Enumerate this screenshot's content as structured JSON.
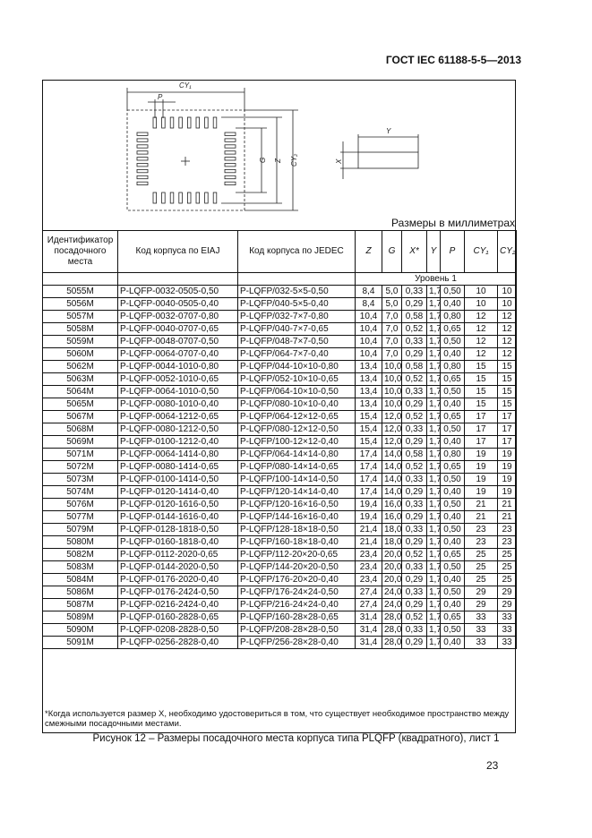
{
  "header": "ГОСТ IEC 61188-5-5—2013",
  "diagram": {
    "cy1": "CY₁",
    "p": "P",
    "g": "G",
    "z": "Z",
    "cy2": "CY₂",
    "y": "Y",
    "x": "X"
  },
  "units": "Размеры в миллиметрах",
  "columns": [
    "Идентификатор посадочного места",
    "Код корпуса по EIAJ",
    "Код корпуса по JEDEC",
    "Z",
    "G",
    "X*",
    "Y",
    "P",
    "CY₁",
    "CY₂"
  ],
  "level": "Уровень 1",
  "rows": [
    [
      "5055M",
      "P-LQFP-0032-0505-0,50",
      "P-LQFP/032-5×5-0,50",
      "8,4",
      "5,0",
      "0,33",
      "1,7",
      "0,50",
      "10",
      "10"
    ],
    [
      "5056M",
      "P-LQFP-0040-0505-0,40",
      "P-LQFP/040-5×5-0,40",
      "8,4",
      "5,0",
      "0,29",
      "1,7",
      "0,40",
      "10",
      "10"
    ],
    [
      "5057M",
      "P-LQFP-0032-0707-0,80",
      "P-LQFP/032-7×7-0,80",
      "10,4",
      "7,0",
      "0,58",
      "1,7",
      "0,80",
      "12",
      "12"
    ],
    [
      "5058M",
      "P-LQFP-0040-0707-0,65",
      "P-LQFP/040-7×7-0,65",
      "10,4",
      "7,0",
      "0,52",
      "1,7",
      "0,65",
      "12",
      "12"
    ],
    [
      "5059M",
      "P-LQFP-0048-0707-0,50",
      "P-LQFP/048-7×7-0,50",
      "10,4",
      "7,0",
      "0,33",
      "1,7",
      "0,50",
      "12",
      "12"
    ],
    [
      "5060M",
      "P-LQFP-0064-0707-0,40",
      "P-LQFP/064-7×7-0,40",
      "10,4",
      "7,0",
      "0,29",
      "1,7",
      "0,40",
      "12",
      "12"
    ],
    [
      "5062M",
      "P-LQFP-0044-1010-0,80",
      "P-LQFP/044-10×10-0,80",
      "13,4",
      "10,0",
      "0,58",
      "1,7",
      "0,80",
      "15",
      "15"
    ],
    [
      "5063M",
      "P-LQFP-0052-1010-0,65",
      "P-LQFP/052-10×10-0,65",
      "13,4",
      "10,0",
      "0,52",
      "1,7",
      "0,65",
      "15",
      "15"
    ],
    [
      "5064M",
      "P-LQFP-0064-1010-0,50",
      "P-LQFP/064-10×10-0,50",
      "13,4",
      "10,0",
      "0,33",
      "1,7",
      "0,50",
      "15",
      "15"
    ],
    [
      "5065M",
      "P-LQFP-0080-1010-0,40",
      "P-LQFP/080-10×10-0,40",
      "13,4",
      "10,0",
      "0,29",
      "1,7",
      "0,40",
      "15",
      "15"
    ],
    [
      "5067M",
      "P-LQFP-0064-1212-0,65",
      "P-LQFP/064-12×12-0,65",
      "15,4",
      "12,0",
      "0,52",
      "1,7",
      "0,65",
      "17",
      "17"
    ],
    [
      "5068M",
      "P-LQFP-0080-1212-0,50",
      "P-LQFP/080-12×12-0,50",
      "15,4",
      "12,0",
      "0,33",
      "1,7",
      "0,50",
      "17",
      "17"
    ],
    [
      "5069M",
      "P-LQFP-0100-1212-0,40",
      "P-LQFP/100-12×12-0,40",
      "15,4",
      "12,0",
      "0,29",
      "1,7",
      "0,40",
      "17",
      "17"
    ],
    [
      "5071M",
      "P-LQFP-0064-1414-0,80",
      "P-LQFP/064-14×14-0,80",
      "17,4",
      "14,0",
      "0,58",
      "1,7",
      "0,80",
      "19",
      "19"
    ],
    [
      "5072M",
      "P-LQFP-0080-1414-0,65",
      "P-LQFP/080-14×14-0,65",
      "17,4",
      "14,0",
      "0,52",
      "1,7",
      "0,65",
      "19",
      "19"
    ],
    [
      "5073M",
      "P-LQFP-0100-1414-0,50",
      "P-LQFP/100-14×14-0,50",
      "17,4",
      "14,0",
      "0,33",
      "1,7",
      "0,50",
      "19",
      "19"
    ],
    [
      "5074M",
      "P-LQFP-0120-1414-0,40",
      "P-LQFP/120-14×14-0,40",
      "17,4",
      "14,0",
      "0,29",
      "1,7",
      "0,40",
      "19",
      "19"
    ],
    [
      "5076M",
      "P-LQFP-0120-1616-0,50",
      "P-LQFP/120-16×16-0,50",
      "19,4",
      "16,0",
      "0,33",
      "1,7",
      "0,50",
      "21",
      "21"
    ],
    [
      "5077M",
      "P-LQFP-0144-1616-0,40",
      "P-LQFP/144-16×16-0,40",
      "19,4",
      "16,0",
      "0,29",
      "1,7",
      "0,40",
      "21",
      "21"
    ],
    [
      "5079M",
      "P-LQFP-0128-1818-0,50",
      "P-LQFP/128-18×18-0,50",
      "21,4",
      "18,0",
      "0,33",
      "1,7",
      "0,50",
      "23",
      "23"
    ],
    [
      "5080M",
      "P-LQFP-0160-1818-0,40",
      "P-LQFP/160-18×18-0,40",
      "21,4",
      "18,0",
      "0,29",
      "1,7",
      "0,40",
      "23",
      "23"
    ],
    [
      "5082M",
      "P-LQFP-0112-2020-0,65",
      "P-LQFP/112-20×20-0,65",
      "23,4",
      "20,0",
      "0,52",
      "1,7",
      "0,65",
      "25",
      "25"
    ],
    [
      "5083M",
      "P-LQFP-0144-2020-0,50",
      "P-LQFP/144-20×20-0,50",
      "23,4",
      "20,0",
      "0,33",
      "1,7",
      "0,50",
      "25",
      "25"
    ],
    [
      "5084M",
      "P-LQFP-0176-2020-0,40",
      "P-LQFP/176-20×20-0,40",
      "23,4",
      "20,0",
      "0,29",
      "1,7",
      "0,40",
      "25",
      "25"
    ],
    [
      "5086M",
      "P-LQFP-0176-2424-0,50",
      "P-LQFP/176-24×24-0,50",
      "27,4",
      "24,0",
      "0,33",
      "1,7",
      "0,50",
      "29",
      "29"
    ],
    [
      "5087M",
      "P-LQFP-0216-2424-0,40",
      "P-LQFP/216-24×24-0,40",
      "27,4",
      "24,0",
      "0,29",
      "1,7",
      "0,40",
      "29",
      "29"
    ],
    [
      "5089M",
      "P-LQFP-0160-2828-0,65",
      "P-LQFP/160-28×28-0,65",
      "31,4",
      "28,0",
      "0,52",
      "1,7",
      "0,65",
      "33",
      "33"
    ],
    [
      "5090M",
      "P-LQFP-0208-2828-0,50",
      "P-LQFP/208-28×28-0,50",
      "31,4",
      "28,0",
      "0,33",
      "1,7",
      "0,50",
      "33",
      "33"
    ],
    [
      "5091M",
      "P-LQFP-0256-2828-0,40",
      "P-LQFP/256-28×28-0,40",
      "31,4",
      "28,0",
      "0,29",
      "1,7",
      "0,40",
      "33",
      "33"
    ]
  ],
  "footnote": "*Когда используется размер X, необходимо удостовериться в том, что существует необходимое пространство между смежными посадочными местами.",
  "caption": "Рисунок 12 –  Размеры посадочного места корпуса типа PLQFP (квадратного), лист 1",
  "page_number": "23"
}
